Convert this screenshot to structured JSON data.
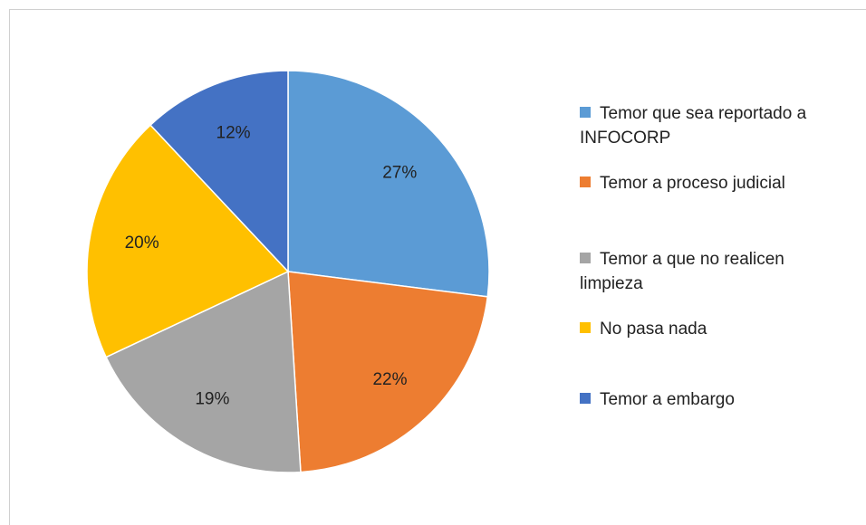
{
  "chart_data": {
    "type": "pie",
    "categories": [
      "Temor que sea reportado a INFOCORP",
      "Temor a proceso judicial",
      "Temor a que no realicen limpieza",
      "No pasa nada",
      "Temor a embargo"
    ],
    "values": [
      27,
      22,
      19,
      20,
      12
    ],
    "value_labels": [
      "27%",
      "22%",
      "19%",
      "20%",
      "12%"
    ],
    "colors": [
      "#5b9bd5",
      "#ed7d31",
      "#a5a5a5",
      "#ffc000",
      "#4472c4"
    ],
    "legend": "right"
  }
}
